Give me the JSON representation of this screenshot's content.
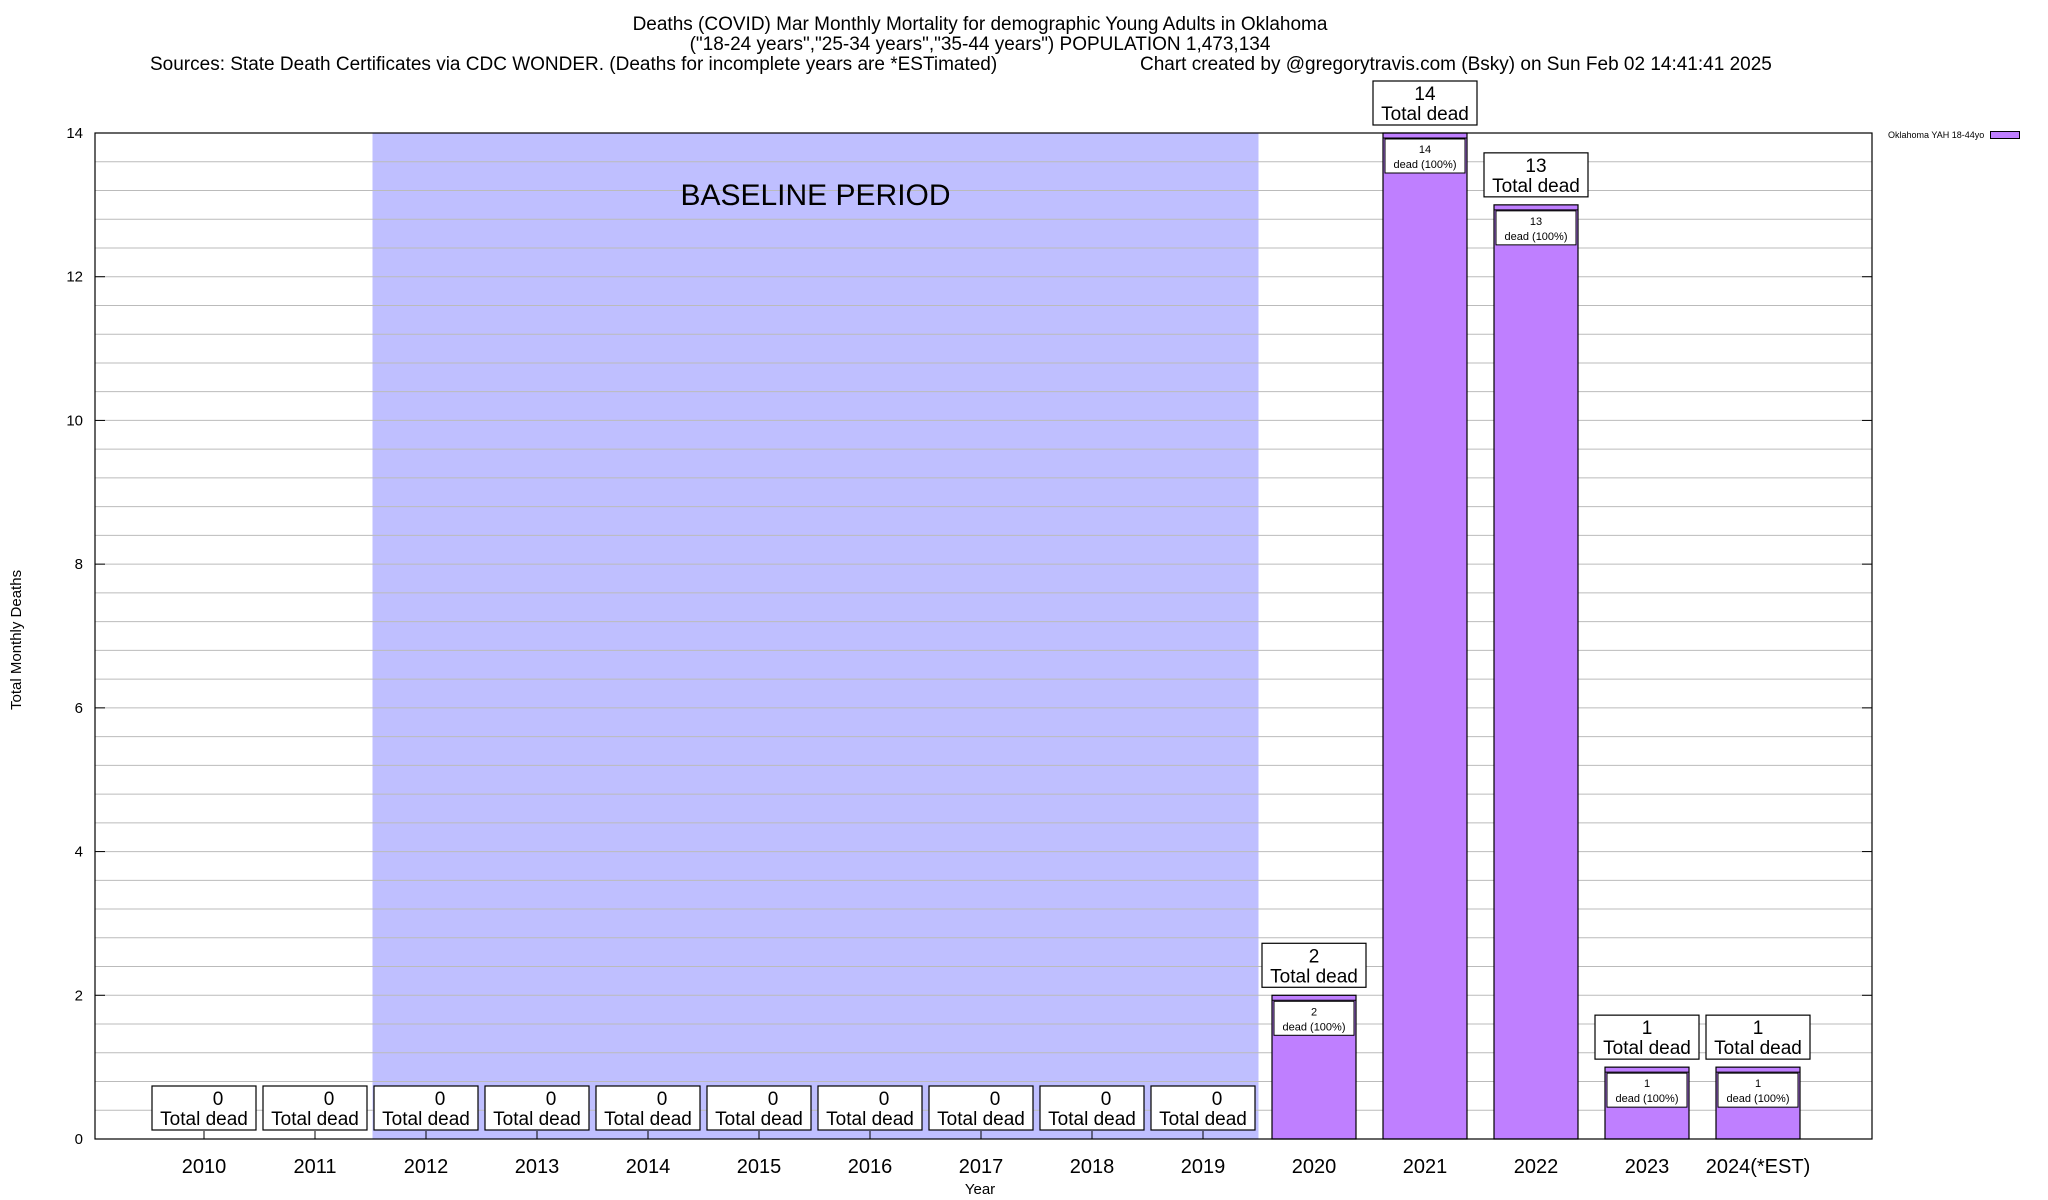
{
  "chart_data": {
    "type": "bar",
    "title": "Deaths (COVID) Mar Monthly Mortality for demographic Young Adults in Oklahoma",
    "subtitle": "(\"18-24 years\",\"25-34 years\",\"35-44 years\") POPULATION 1,473,134",
    "source_text": "Sources: State Death Certificates via CDC WONDER. (Deaths for incomplete years are *ESTimated)",
    "credit_text": "Chart created by @gregorytravis.com (Bsky) on Sun Feb 02 14:41:41 2025",
    "xlabel": "Year",
    "ylabel": "Total Monthly Deaths",
    "ylim": [
      0,
      14
    ],
    "y_ticks": [
      0,
      2,
      4,
      6,
      8,
      10,
      12,
      14
    ],
    "y_minor_step": 0.4,
    "categories": [
      "2010",
      "2011",
      "2012",
      "2013",
      "2014",
      "2015",
      "2016",
      "2017",
      "2018",
      "2019",
      "2020",
      "2021",
      "2022",
      "2023",
      "2024(*EST)"
    ],
    "series": [
      {
        "name": "Oklahoma YAH 18-44yo",
        "color": "#bf7fff",
        "values": [
          0,
          0,
          0,
          0,
          0,
          0,
          0,
          0,
          0,
          0,
          2,
          14,
          13,
          1,
          1
        ]
      }
    ],
    "total_label_suffix": "Total dead",
    "inner_label_suffix": "dead (100%)",
    "baseline": {
      "label": "BASELINE PERIOD",
      "from": "2012",
      "to": "2019",
      "color": "#bfbfff"
    },
    "grid": true,
    "legend_position": "top-right"
  }
}
